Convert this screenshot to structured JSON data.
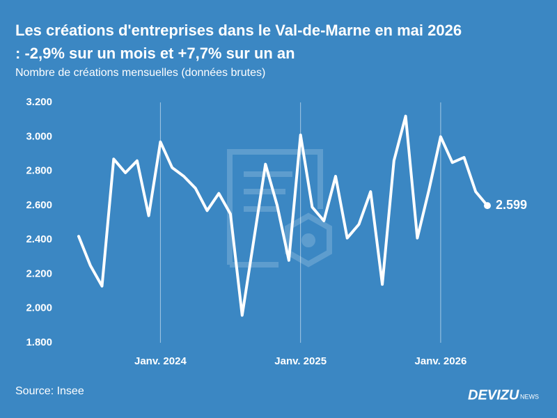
{
  "chart_data": {
    "type": "line",
    "title": "Les créations d'entreprises dans le Val-de-Marne en mai 2026",
    "title_line2": ": -2,9% sur un mois et +7,7% sur un an",
    "subtitle": "Nombre de créations mensuelles (données brutes)",
    "source": "Source: Insee",
    "brand": "DEVIZU",
    "brand_suffix": "NEWS",
    "categories": [
      null,
      null,
      null,
      null,
      null,
      null,
      null,
      "Janv. 2024",
      null,
      null,
      null,
      null,
      null,
      null,
      null,
      null,
      null,
      null,
      null,
      "Janv. 2025",
      null,
      null,
      null,
      null,
      null,
      null,
      null,
      null,
      null,
      null,
      null,
      "Janv. 2026",
      null,
      null,
      null,
      null
    ],
    "values": [
      2420,
      2250,
      2130,
      2870,
      2790,
      2860,
      2540,
      2970,
      2820,
      2770,
      2700,
      2570,
      2670,
      2550,
      1960,
      2400,
      2840,
      2600,
      2280,
      3010,
      2590,
      2510,
      2770,
      2410,
      2490,
      2680,
      2140,
      2860,
      3120,
      2410,
      2690,
      3000,
      2850,
      2880,
      2680,
      2599
    ],
    "value_labels": [
      null,
      null,
      null,
      null,
      null,
      null,
      null,
      null,
      null,
      null,
      null,
      null,
      null,
      null,
      null,
      null,
      null,
      null,
      null,
      null,
      null,
      null,
      null,
      null,
      null,
      null,
      null,
      null,
      null,
      null,
      null,
      null,
      null,
      null,
      null,
      "2.599"
    ],
    "color": "#ffffff",
    "ylim": [
      1800,
      3200
    ],
    "yticks": [
      {
        "value": 1800,
        "label": "1.800"
      },
      {
        "value": 2000,
        "label": "2.000"
      },
      {
        "value": 2200,
        "label": "2.200"
      },
      {
        "value": 2400,
        "label": "2.400"
      },
      {
        "value": 2600,
        "label": "2.600"
      },
      {
        "value": 2800,
        "label": "2.800"
      },
      {
        "value": 3000,
        "label": "3.000"
      },
      {
        "value": 3200,
        "label": "3.200"
      }
    ],
    "grid": "x"
  }
}
